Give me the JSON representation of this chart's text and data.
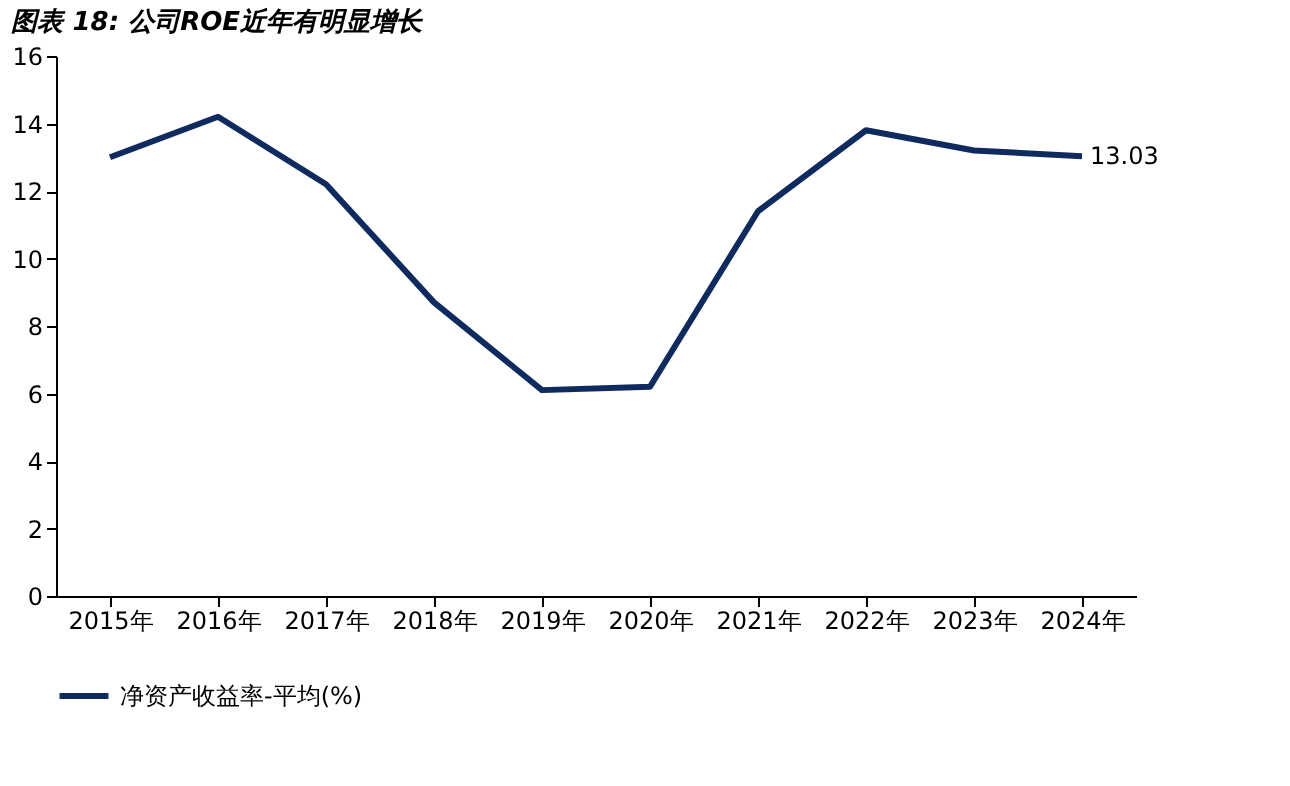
{
  "chart_data": {
    "type": "line",
    "title": "图表 18: 公司ROE近年有明显增长",
    "categories": [
      "2015年",
      "2016年",
      "2017年",
      "2018年",
      "2019年",
      "2020年",
      "2021年",
      "2022年",
      "2023年",
      "2024年"
    ],
    "series": [
      {
        "name": "净资产收益率-平均(%)",
        "color": "#0f2a5e",
        "values": [
          13.0,
          14.2,
          12.2,
          8.7,
          6.1,
          6.2,
          11.4,
          13.8,
          13.2,
          13.03
        ],
        "value_labels": [
          null,
          null,
          null,
          null,
          null,
          null,
          null,
          null,
          null,
          "13.03"
        ]
      }
    ],
    "ylim": [
      0,
      16
    ],
    "yticks": [
      0,
      2,
      4,
      6,
      8,
      10,
      12,
      14,
      16
    ],
    "grid": false,
    "legend": "bottom",
    "marker": "none",
    "line_style": "solid"
  }
}
